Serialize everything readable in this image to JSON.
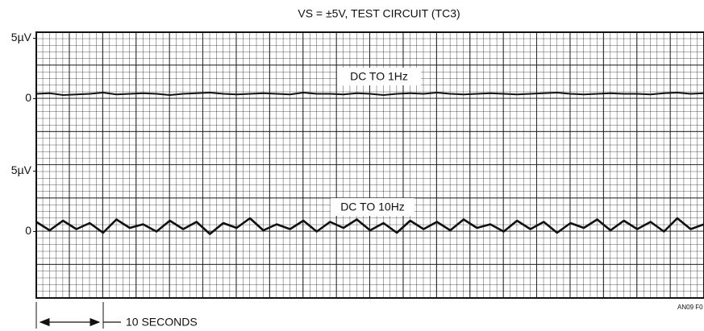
{
  "chart_data": [
    {
      "type": "line",
      "title": "VS = ±5V, TEST CIRCUIT (TC3)",
      "x": [
        0,
        2,
        4,
        6,
        8,
        10,
        12,
        14,
        16,
        18,
        20,
        22,
        24,
        26,
        28,
        30,
        32,
        34,
        36,
        38,
        40,
        42,
        44,
        46,
        48,
        50,
        52,
        54,
        56,
        58,
        60,
        62,
        64,
        66,
        68,
        70,
        72,
        74,
        76,
        78,
        80,
        82,
        84,
        86,
        88,
        90,
        92,
        94,
        96,
        98,
        100
      ],
      "xlim": [
        0,
        100
      ],
      "ylim": [
        -5.5,
        5.5
      ],
      "yticks": [
        {
          "value": 5,
          "label": "5µV"
        },
        0
      ],
      "series": [
        {
          "name": "DC TO 1Hz",
          "color": "#111111",
          "values": [
            0.4,
            0.45,
            0.3,
            0.35,
            0.4,
            0.5,
            0.35,
            0.4,
            0.45,
            0.4,
            0.3,
            0.4,
            0.45,
            0.5,
            0.4,
            0.35,
            0.4,
            0.45,
            0.4,
            0.35,
            0.5,
            0.4,
            0.4,
            0.35,
            0.45,
            0.4,
            0.3,
            0.4,
            0.45,
            0.4,
            0.5,
            0.4,
            0.35,
            0.4,
            0.45,
            0.4,
            0.35,
            0.4,
            0.45,
            0.5,
            0.4,
            0.35,
            0.4,
            0.45,
            0.4,
            0.4,
            0.35,
            0.45,
            0.5,
            0.4,
            0.45
          ]
        }
      ]
    },
    {
      "type": "line",
      "x": [
        0,
        2,
        4,
        6,
        8,
        10,
        12,
        14,
        16,
        18,
        20,
        22,
        24,
        26,
        28,
        30,
        32,
        34,
        36,
        38,
        40,
        42,
        44,
        46,
        48,
        50,
        52,
        54,
        56,
        58,
        60,
        62,
        64,
        66,
        68,
        70,
        72,
        74,
        76,
        78,
        80,
        82,
        84,
        86,
        88,
        90,
        92,
        94,
        96,
        98,
        100
      ],
      "xlim": [
        0,
        100
      ],
      "ylim": [
        -5.5,
        5.5
      ],
      "yticks": [
        {
          "value": 5,
          "label": "5µV"
        },
        0
      ],
      "series": [
        {
          "name": "DC TO 10Hz",
          "color": "#111111",
          "values": [
            0.8,
            0.1,
            0.9,
            0.2,
            0.7,
            -0.1,
            1.0,
            0.3,
            0.6,
            0.0,
            0.9,
            0.2,
            0.8,
            -0.2,
            0.7,
            0.3,
            1.1,
            0.1,
            0.6,
            0.2,
            0.9,
            0.0,
            0.8,
            0.3,
            1.0,
            0.1,
            0.7,
            -0.1,
            0.9,
            0.2,
            0.8,
            0.1,
            1.0,
            0.3,
            0.6,
            0.0,
            0.9,
            0.2,
            0.8,
            -0.1,
            0.7,
            0.3,
            1.0,
            0.1,
            0.9,
            0.2,
            0.8,
            0.0,
            1.1,
            0.2,
            0.6
          ]
        }
      ]
    }
  ],
  "x_scale_label": "10 SECONDS",
  "figure_id": "AN09 F0"
}
